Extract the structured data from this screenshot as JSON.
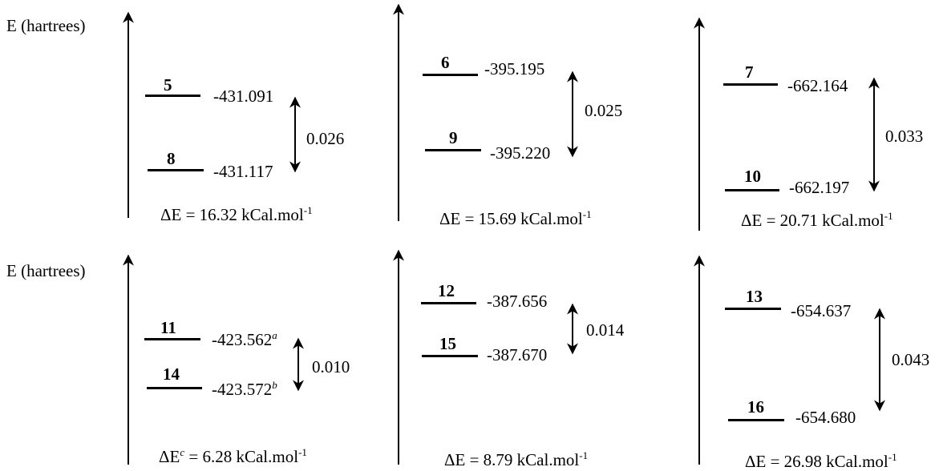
{
  "y_label": "E (hartrees)",
  "panels": [
    {
      "upper": {
        "id": "5",
        "energy": "-431.091"
      },
      "lower": {
        "id": "8",
        "energy": "-431.117"
      },
      "gap": "0.026",
      "delta": "ΔE = 16.32 kCal.mol",
      "unit_sup": "-1"
    },
    {
      "upper": {
        "id": "6",
        "energy": "-395.195"
      },
      "lower": {
        "id": "9",
        "energy": "-395.220"
      },
      "gap": "0.025",
      "delta": "ΔE = 15.69 kCal.mol",
      "unit_sup": "-1"
    },
    {
      "upper": {
        "id": "7",
        "energy": "-662.164"
      },
      "lower": {
        "id": "10",
        "energy": "-662.197"
      },
      "gap": "0.033",
      "delta": "ΔE = 20.71 kCal.mol",
      "unit_sup": "-1"
    },
    {
      "upper": {
        "id": "11",
        "energy": "-423.562",
        "sup": "a"
      },
      "lower": {
        "id": "14",
        "energy": "-423.572",
        "sup": "b"
      },
      "gap": "0.010",
      "delta_prefix": "ΔE",
      "delta_sup": "c",
      "delta_rest": " = 6.28 kCal.mol",
      "unit_sup": "-1"
    },
    {
      "upper": {
        "id": "12",
        "energy": "-387.656"
      },
      "lower": {
        "id": "15",
        "energy": "-387.670"
      },
      "gap": "0.014",
      "delta": "ΔE = 8.79 kCal.mol",
      "unit_sup": "-1"
    },
    {
      "upper": {
        "id": "13",
        "energy": "-654.637"
      },
      "lower": {
        "id": "16",
        "energy": "-654.680"
      },
      "gap": "0.043",
      "delta": "ΔE = 26.98 kCal.mol",
      "unit_sup": "-1"
    }
  ]
}
